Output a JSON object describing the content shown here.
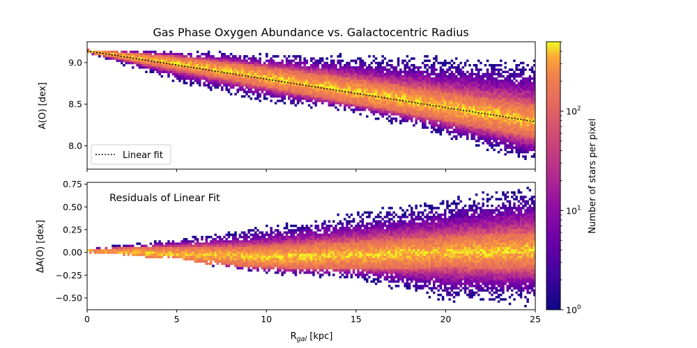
{
  "chart_data": [
    {
      "type": "heatmap",
      "title": "Gas Phase Oxygen Abundance vs. Galactocentric Radius",
      "xlabel": "",
      "ylabel": "A(O) [dex]",
      "xlim": [
        0,
        25
      ],
      "ylim": [
        7.72,
        9.25
      ],
      "xticks": [
        0,
        5,
        10,
        15,
        20,
        25
      ],
      "yticks": [
        "8.0",
        "8.5",
        "9.0"
      ],
      "yticks_values": [
        8.0,
        8.5,
        9.0
      ],
      "linear_fit": {
        "label": "Linear fit",
        "x": [
          0,
          25
        ],
        "y": [
          9.14,
          8.29
        ],
        "style": "dotted",
        "color": "#000000"
      },
      "legend_position": "lower-left",
      "density_band": {
        "x": [
          0,
          5,
          10,
          15,
          20,
          25
        ],
        "center": [
          9.14,
          8.99,
          8.82,
          8.65,
          8.47,
          8.29
        ],
        "half_width_dense": [
          0.02,
          0.08,
          0.12,
          0.15,
          0.17,
          0.2
        ],
        "upper_envelope": [
          9.16,
          9.15,
          9.12,
          9.1,
          9.08,
          9.06
        ],
        "lower_envelope": [
          9.12,
          8.75,
          8.52,
          8.38,
          8.1,
          7.76
        ]
      }
    },
    {
      "type": "heatmap",
      "annotation": "Residuals of Linear Fit",
      "xlabel": "R_gal [kpc]",
      "ylabel": "ΔA(O) [dex]",
      "xlim": [
        0,
        25
      ],
      "ylim": [
        -0.63,
        0.77
      ],
      "xticks": [
        0,
        5,
        10,
        15,
        20,
        25
      ],
      "yticks": [
        "−0.50",
        "−0.25",
        "0.00",
        "0.25",
        "0.50",
        "0.75"
      ],
      "yticks_values": [
        -0.5,
        -0.25,
        0.0,
        0.25,
        0.5,
        0.75
      ],
      "density_band": {
        "x": [
          0,
          5,
          10,
          15,
          20,
          25
        ],
        "center": [
          0.02,
          -0.02,
          -0.05,
          -0.03,
          0.0,
          0.02
        ],
        "half_width_dense": [
          0.02,
          0.08,
          0.12,
          0.15,
          0.17,
          0.2
        ],
        "upper_envelope": [
          0.04,
          0.16,
          0.3,
          0.45,
          0.6,
          0.77
        ],
        "lower_envelope": [
          0.0,
          -0.08,
          -0.25,
          -0.3,
          -0.55,
          -0.6
        ]
      }
    }
  ],
  "colorbar": {
    "label": "Number of stars per pixel",
    "scale": "log",
    "range": [
      1,
      500
    ],
    "ticks": [
      {
        "value": 1,
        "base": "10",
        "exp": "0"
      },
      {
        "value": 10,
        "base": "10",
        "exp": "1"
      },
      {
        "value": 100,
        "base": "10",
        "exp": "2"
      }
    ],
    "colormap": "plasma"
  },
  "labels": {
    "xlabel_main": "R",
    "xlabel_sub": "gal",
    "xlabel_unit": " [kpc]"
  }
}
